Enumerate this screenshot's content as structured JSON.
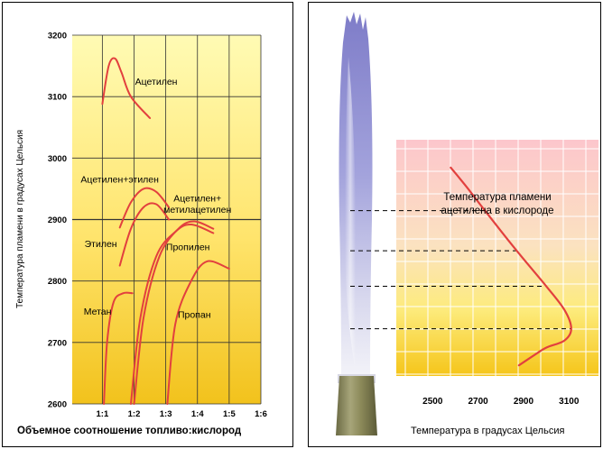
{
  "chart_data": [
    {
      "type": "line",
      "ylabel": "Температура пламени в градусах Цельсия",
      "xlabel": "Объемное соотношение топливо:кислород",
      "x_ticks": [
        {
          "label": "1:1",
          "value": 1
        },
        {
          "label": "1:2",
          "value": 2
        },
        {
          "label": "1:3",
          "value": 3
        },
        {
          "label": "1:4",
          "value": 4
        },
        {
          "label": "1:5",
          "value": 5
        },
        {
          "label": "1:6",
          "value": 6
        }
      ],
      "y_ticks": [
        "2600",
        "2700",
        "2800",
        "2900",
        "3000",
        "3100",
        "3200"
      ],
      "ylim": [
        2600,
        3200
      ],
      "xlim": [
        0.05,
        6
      ],
      "grid": true,
      "colors": {
        "curve": "#e2403e",
        "bg_top": "#fffbb4",
        "bg_bottom": "#f2c21c",
        "grid": "#333333"
      },
      "series": [
        {
          "name": "Ацетилен",
          "points": [
            [
              1.0,
              3088
            ],
            [
              1.2,
              3150
            ],
            [
              1.4,
              3162
            ],
            [
              1.6,
              3140
            ],
            [
              1.9,
              3100
            ],
            [
              2.5,
              3065
            ]
          ]
        },
        {
          "name": "Ацетилен+этилен",
          "points": [
            [
              1.55,
              2887
            ],
            [
              1.9,
              2928
            ],
            [
              2.3,
              2950
            ],
            [
              2.7,
              2945
            ],
            [
              3.1,
              2920
            ]
          ]
        },
        {
          "name": "Этилен",
          "points": [
            [
              1.55,
              2825
            ],
            [
              1.9,
              2885
            ],
            [
              2.3,
              2920
            ],
            [
              2.7,
              2925
            ],
            [
              3.1,
              2900
            ]
          ]
        },
        {
          "name": "Ацетилен+метилацетилен",
          "points": [
            [
              2.0,
              2600
            ],
            [
              2.3,
              2740
            ],
            [
              2.8,
              2840
            ],
            [
              3.4,
              2885
            ],
            [
              3.9,
              2897
            ],
            [
              4.5,
              2885
            ]
          ]
        },
        {
          "name": "Пропилен",
          "points": [
            [
              1.9,
              2600
            ],
            [
              2.2,
              2740
            ],
            [
              2.7,
              2840
            ],
            [
              3.3,
              2880
            ],
            [
              3.8,
              2892
            ],
            [
              4.5,
              2878
            ]
          ]
        },
        {
          "name": "Метан",
          "points": [
            [
              1.05,
              2600
            ],
            [
              1.15,
              2700
            ],
            [
              1.35,
              2765
            ],
            [
              1.65,
              2780
            ],
            [
              1.95,
              2780
            ]
          ]
        },
        {
          "name": "Пропан",
          "points": [
            [
              3.05,
              2600
            ],
            [
              3.3,
              2730
            ],
            [
              3.8,
              2800
            ],
            [
              4.3,
              2832
            ],
            [
              5.0,
              2820
            ]
          ]
        }
      ],
      "labels": [
        {
          "series": "Ацетилен",
          "text": "Ацетилен",
          "x": 2.7,
          "y": 3119
        },
        {
          "series": "Ацетилен+этилен",
          "text": "Ацетилен+этилен",
          "x": 1.55,
          "y": 2960
        },
        {
          "series": "Ацетилен+метилацетилен",
          "text": "Ацетилен+",
          "x": 4.0,
          "y": 2929
        },
        {
          "series": "Ацетилен+метилацетилен",
          "text": "метилацетилен",
          "x": 4.0,
          "y": 2911
        },
        {
          "series": "Пропилен",
          "text": "Пропилен",
          "x": 3.7,
          "y": 2850
        },
        {
          "series": "Этилен",
          "text": "Этилен",
          "x": 0.95,
          "y": 2855
        },
        {
          "series": "Метан",
          "text": "Метан",
          "x": 0.85,
          "y": 2745
        },
        {
          "series": "Пропан",
          "text": "Пропан",
          "x": 3.9,
          "y": 2740
        }
      ]
    },
    {
      "type": "line",
      "title_lines": [
        "Температура пламени",
        "ацетилена в кислороде"
      ],
      "xlabel": "Температура в градусах Цельсия",
      "x_ticks": [
        "2500",
        "2700",
        "2900",
        "3100"
      ],
      "xlim": [
        2340,
        3230
      ],
      "grid": true,
      "colors": {
        "curve": "#e2403e",
        "bg_top": "#fcc6cc",
        "bg_bottom": "#f5c519",
        "grid": "#ffffff",
        "flame": "#7e7cc8",
        "nozzle": "#8c8a5a"
      },
      "series": [
        {
          "name": "",
          "points": [
            [
              2580,
              0.118
            ],
            [
              2650,
              0.2
            ],
            [
              2730,
              0.3
            ],
            [
              2870,
              0.47
            ],
            [
              3000,
              0.62
            ],
            [
              3080,
              0.72
            ],
            [
              3110,
              0.8
            ],
            [
              3080,
              0.85
            ],
            [
              3000,
              0.88
            ],
            [
              2950,
              0.91
            ],
            [
              2880,
              0.955
            ]
          ]
        }
      ],
      "guide_levels": [
        0.3,
        0.47,
        0.62,
        0.8
      ]
    }
  ]
}
